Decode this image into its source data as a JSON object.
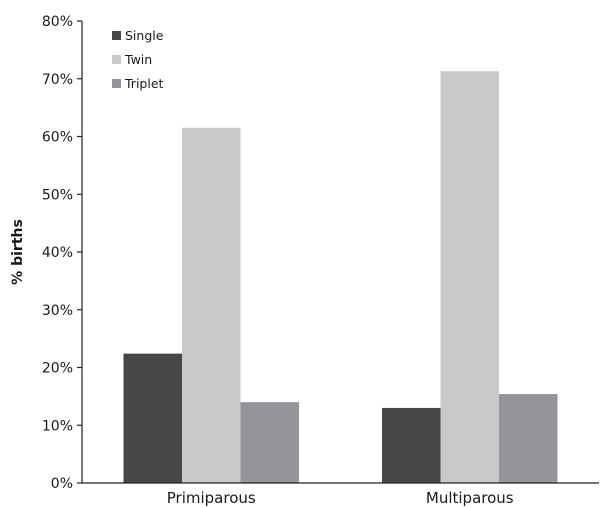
{
  "chart_data": {
    "type": "bar",
    "title": "",
    "xlabel": "",
    "ylabel": "% births",
    "categories": [
      "Primiparous",
      "Multiparous"
    ],
    "series": [
      {
        "name": "Single",
        "values": [
          22.4,
          13.0
        ],
        "color": "#464749"
      },
      {
        "name": "Twin",
        "values": [
          61.5,
          71.3
        ],
        "color": "#c8c9cb"
      },
      {
        "name": "Triplet",
        "values": [
          14.0,
          15.4
        ],
        "color": "#939598"
      }
    ],
    "ylim": [
      0,
      80
    ],
    "yticks": [
      "0%",
      "10%",
      "20%",
      "30%",
      "40%",
      "50%",
      "60%",
      "70%",
      "80%"
    ],
    "grid": false,
    "legend": "top-left"
  }
}
